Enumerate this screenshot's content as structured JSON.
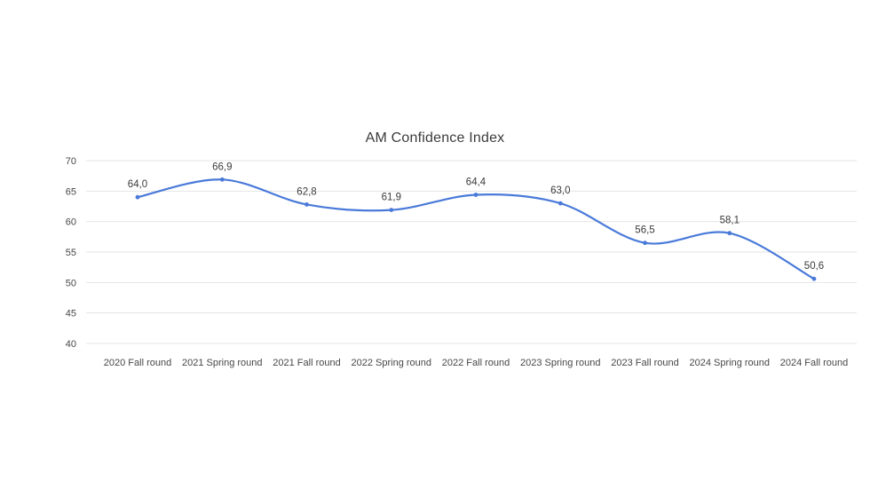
{
  "chart_data": {
    "type": "line",
    "title": "AM Confidence Index",
    "categories": [
      "2020 Fall round",
      "2021 Spring round",
      "2021 Fall round",
      "2022 Spring round",
      "2022 Fall round",
      "2023 Spring round",
      "2023 Fall round",
      "2024 Spring round",
      "2024 Fall round"
    ],
    "values": [
      64.0,
      66.9,
      62.8,
      61.9,
      64.4,
      63.0,
      56.5,
      58.1,
      50.6
    ],
    "value_labels": [
      "64,0",
      "66,9",
      "62,8",
      "61,9",
      "64,4",
      "63,0",
      "56,5",
      "58,1",
      "50,6"
    ],
    "ylim": [
      40,
      70
    ],
    "ytick_step": 5,
    "ytick_labels": [
      "40",
      "45",
      "50",
      "55",
      "60",
      "65",
      "70"
    ],
    "xlabel": "",
    "ylabel": "",
    "grid": true,
    "legend": "none",
    "smooth": true,
    "colors": {
      "line": "#4a7ad9",
      "marker": "#4a7ad9",
      "gridline": "#e5e5e5",
      "title_text": "#3b3b3b",
      "axis_text": "#474747",
      "data_label_text": "#3b3b3b",
      "background": "#ffffff"
    }
  }
}
